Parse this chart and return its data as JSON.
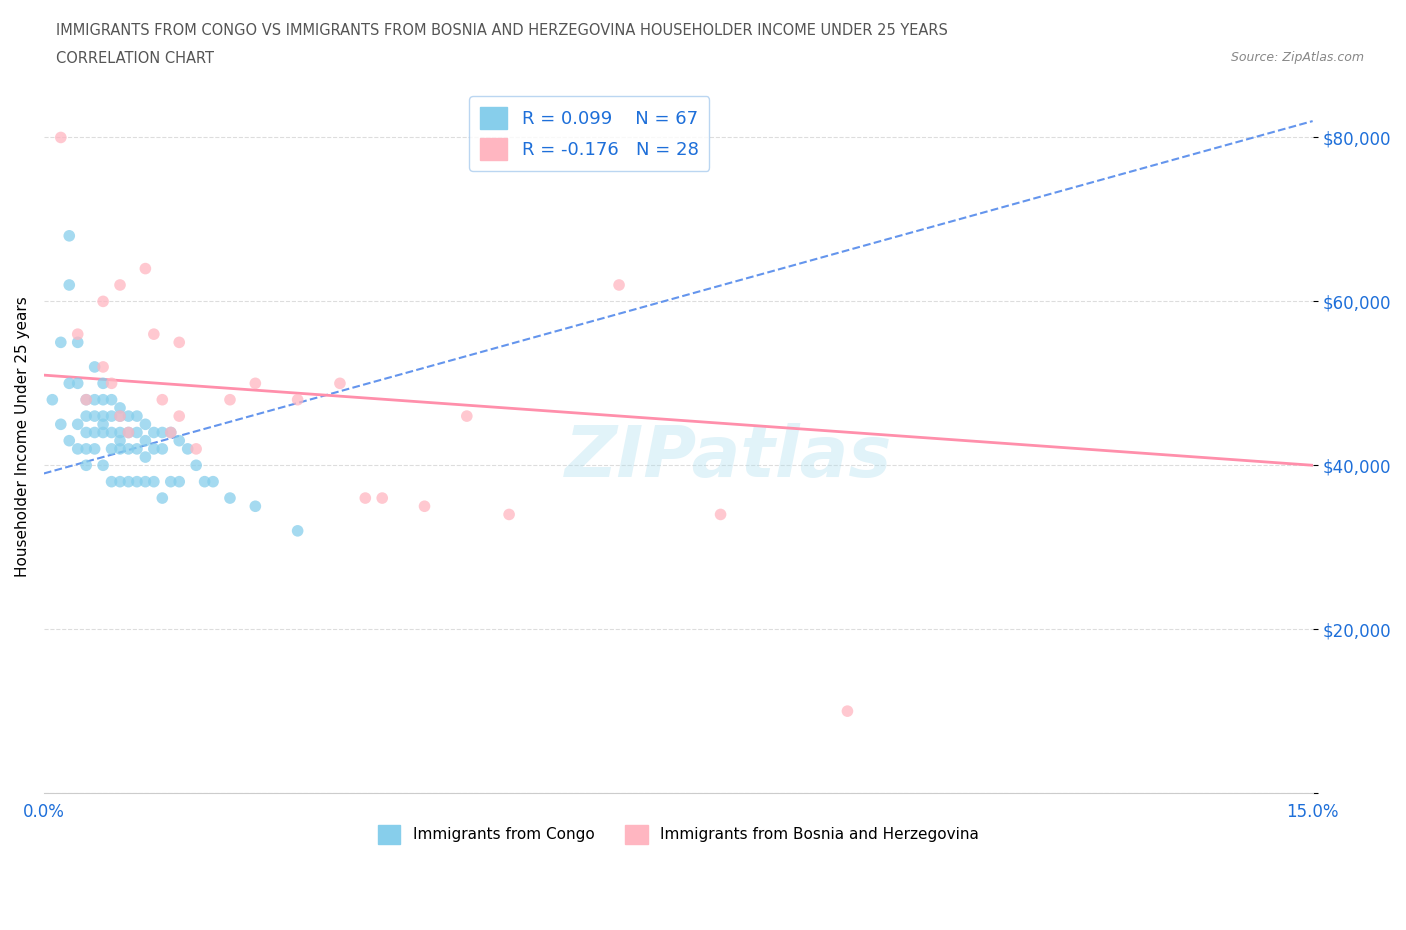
{
  "title_line1": "IMMIGRANTS FROM CONGO VS IMMIGRANTS FROM BOSNIA AND HERZEGOVINA HOUSEHOLDER INCOME UNDER 25 YEARS",
  "title_line2": "CORRELATION CHART",
  "source": "Source: ZipAtlas.com",
  "ylabel": "Householder Income Under 25 years",
  "xlim": [
    0.0,
    0.15
  ],
  "ylim": [
    0,
    87000
  ],
  "yticks": [
    0,
    20000,
    40000,
    60000,
    80000
  ],
  "ytick_labels": [
    "",
    "$20,000",
    "$40,000",
    "$60,000",
    "$80,000"
  ],
  "xticks": [
    0.0,
    0.025,
    0.05,
    0.075,
    0.1,
    0.125,
    0.15
  ],
  "xtick_labels": [
    "0.0%",
    "",
    "",
    "",
    "",
    "",
    "15.0%"
  ],
  "congo_color": "#87CEEB",
  "bosnia_color": "#FFB6C1",
  "congo_R": 0.099,
  "congo_N": 67,
  "bosnia_R": -0.176,
  "bosnia_N": 28,
  "congo_line_color": "#6495ED",
  "bosnia_line_color": "#FF8FAB",
  "legend_text_color": "#1E6FD9",
  "watermark_text": "ZIPatlas",
  "congo_x": [
    0.001,
    0.002,
    0.002,
    0.003,
    0.003,
    0.003,
    0.003,
    0.004,
    0.004,
    0.004,
    0.004,
    0.005,
    0.005,
    0.005,
    0.005,
    0.005,
    0.006,
    0.006,
    0.006,
    0.006,
    0.006,
    0.007,
    0.007,
    0.007,
    0.007,
    0.007,
    0.007,
    0.008,
    0.008,
    0.008,
    0.008,
    0.008,
    0.009,
    0.009,
    0.009,
    0.009,
    0.009,
    0.009,
    0.01,
    0.01,
    0.01,
    0.01,
    0.011,
    0.011,
    0.011,
    0.011,
    0.012,
    0.012,
    0.012,
    0.012,
    0.013,
    0.013,
    0.013,
    0.014,
    0.014,
    0.014,
    0.015,
    0.015,
    0.016,
    0.016,
    0.017,
    0.018,
    0.019,
    0.02,
    0.022,
    0.025,
    0.03
  ],
  "congo_y": [
    48000,
    55000,
    45000,
    68000,
    62000,
    50000,
    43000,
    55000,
    50000,
    45000,
    42000,
    48000,
    46000,
    44000,
    42000,
    40000,
    52000,
    48000,
    46000,
    44000,
    42000,
    50000,
    48000,
    46000,
    45000,
    44000,
    40000,
    48000,
    46000,
    44000,
    42000,
    38000,
    47000,
    46000,
    44000,
    43000,
    42000,
    38000,
    46000,
    44000,
    42000,
    38000,
    46000,
    44000,
    42000,
    38000,
    45000,
    43000,
    41000,
    38000,
    44000,
    42000,
    38000,
    44000,
    42000,
    36000,
    44000,
    38000,
    43000,
    38000,
    42000,
    40000,
    38000,
    38000,
    36000,
    35000,
    32000
  ],
  "bosnia_x": [
    0.002,
    0.004,
    0.005,
    0.007,
    0.007,
    0.008,
    0.009,
    0.009,
    0.01,
    0.012,
    0.013,
    0.014,
    0.015,
    0.016,
    0.016,
    0.018,
    0.022,
    0.025,
    0.03,
    0.035,
    0.038,
    0.04,
    0.045,
    0.05,
    0.055,
    0.068,
    0.08,
    0.095
  ],
  "bosnia_y": [
    80000,
    56000,
    48000,
    60000,
    52000,
    50000,
    46000,
    62000,
    44000,
    64000,
    56000,
    48000,
    44000,
    55000,
    46000,
    42000,
    48000,
    50000,
    48000,
    50000,
    36000,
    36000,
    35000,
    46000,
    34000,
    62000,
    34000,
    10000
  ],
  "congo_trend_x0": 0.0,
  "congo_trend_y0": 39000,
  "congo_trend_x1": 0.15,
  "congo_trend_y1": 82000,
  "bosnia_trend_x0": 0.0,
  "bosnia_trend_y0": 51000,
  "bosnia_trend_x1": 0.15,
  "bosnia_trend_y1": 40000
}
